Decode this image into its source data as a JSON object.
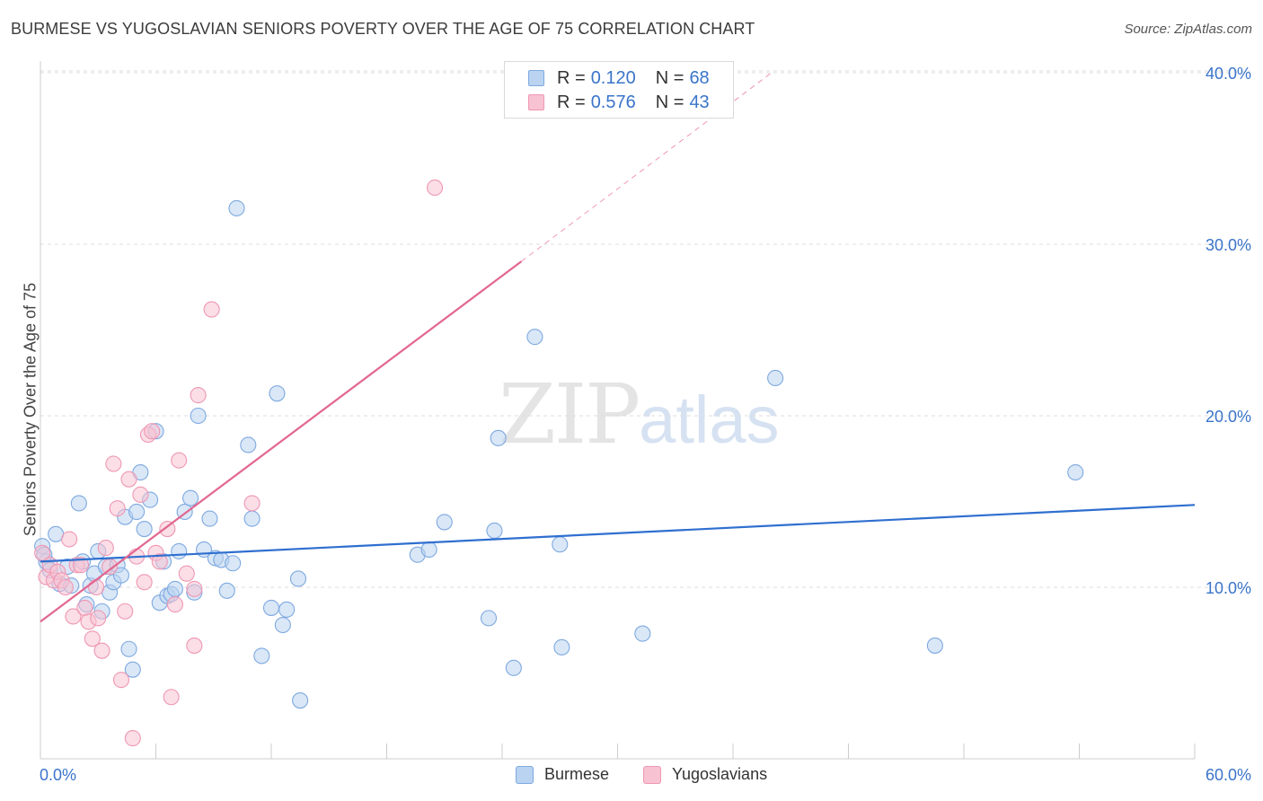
{
  "title": "BURMESE VS YUGOSLAVIAN SENIORS POVERTY OVER THE AGE OF 75 CORRELATION CHART",
  "source": "Source: ZipAtlas.com",
  "watermark": {
    "zip": "ZIP",
    "atlas": "atlas"
  },
  "legend_top": [
    {
      "r_label": "R =",
      "r_value": "0.120",
      "n_label": "N =",
      "n_value": "68"
    },
    {
      "r_label": "R =",
      "r_value": "0.576",
      "n_label": "N =",
      "n_value": "43"
    }
  ],
  "colors": {
    "burmese_fill": "#b9d3f1",
    "burmese_stroke": "#7ea9e0",
    "burmese_line": "#2f6fd0",
    "yugo_fill": "#f7c2d2",
    "yugo_stroke": "#ef97b4",
    "yugo_line": "#e2668f",
    "axis_text": "#3a74c9",
    "grid": "#dddddd"
  },
  "chart_data": {
    "type": "scatter",
    "title": "BURMESE VS YUGOSLAVIAN SENIORS POVERTY OVER THE AGE OF 75 CORRELATION CHART",
    "xlabel": "",
    "ylabel": "Seniors Poverty Over the Age of 75",
    "xlim": [
      0,
      60
    ],
    "ylim": [
      0,
      40
    ],
    "x_tick_labels": [
      "0.0%",
      "60.0%"
    ],
    "y_ticks": [
      10,
      20,
      30,
      40
    ],
    "y_tick_labels": [
      "10.0%",
      "20.0%",
      "30.0%",
      "40.0%"
    ],
    "grid": true,
    "legend_position": "bottom",
    "series": [
      {
        "name": "Burmese",
        "r": 0.12,
        "n": 68,
        "trend": {
          "x": [
            0,
            60
          ],
          "y": [
            11.5,
            14.8
          ]
        },
        "points": [
          [
            0.1,
            12.4
          ],
          [
            0.3,
            11.5
          ],
          [
            0.5,
            11.0
          ],
          [
            0.8,
            13.1
          ],
          [
            1.0,
            10.2
          ],
          [
            1.4,
            11.2
          ],
          [
            1.6,
            10.1
          ],
          [
            2.0,
            14.9
          ],
          [
            2.2,
            11.5
          ],
          [
            2.4,
            9.0
          ],
          [
            2.6,
            10.1
          ],
          [
            2.8,
            10.8
          ],
          [
            3.0,
            12.1
          ],
          [
            3.2,
            8.6
          ],
          [
            3.4,
            11.2
          ],
          [
            3.6,
            9.7
          ],
          [
            3.8,
            10.3
          ],
          [
            4.0,
            11.3
          ],
          [
            4.2,
            10.7
          ],
          [
            4.4,
            14.1
          ],
          [
            4.6,
            6.4
          ],
          [
            4.8,
            5.2
          ],
          [
            5.0,
            14.4
          ],
          [
            5.2,
            16.7
          ],
          [
            5.4,
            13.4
          ],
          [
            5.7,
            15.1
          ],
          [
            6.0,
            19.1
          ],
          [
            6.2,
            9.1
          ],
          [
            6.4,
            11.5
          ],
          [
            6.6,
            9.5
          ],
          [
            6.8,
            9.6
          ],
          [
            7.0,
            9.9
          ],
          [
            7.2,
            12.1
          ],
          [
            7.5,
            14.4
          ],
          [
            7.8,
            15.2
          ],
          [
            8.0,
            9.7
          ],
          [
            8.2,
            20.0
          ],
          [
            8.5,
            12.2
          ],
          [
            8.8,
            14.0
          ],
          [
            9.1,
            11.7
          ],
          [
            9.4,
            11.6
          ],
          [
            9.7,
            9.8
          ],
          [
            10.0,
            11.4
          ],
          [
            10.2,
            32.1
          ],
          [
            10.8,
            18.3
          ],
          [
            11.0,
            14.0
          ],
          [
            11.5,
            6.0
          ],
          [
            12.0,
            8.8
          ],
          [
            12.3,
            21.3
          ],
          [
            12.6,
            7.8
          ],
          [
            12.8,
            8.7
          ],
          [
            13.4,
            10.5
          ],
          [
            13.5,
            3.4
          ],
          [
            19.6,
            11.9
          ],
          [
            20.2,
            12.2
          ],
          [
            21.0,
            13.8
          ],
          [
            23.3,
            8.2
          ],
          [
            23.6,
            13.3
          ],
          [
            23.8,
            18.7
          ],
          [
            24.6,
            5.3
          ],
          [
            25.7,
            24.6
          ],
          [
            27.0,
            12.5
          ],
          [
            27.1,
            6.5
          ],
          [
            31.3,
            7.3
          ],
          [
            38.2,
            22.2
          ],
          [
            46.5,
            6.6
          ],
          [
            53.8,
            16.7
          ],
          [
            0.2,
            11.9
          ]
        ]
      },
      {
        "name": "Yugoslavians",
        "r": 0.576,
        "n": 43,
        "trend": {
          "x": [
            0,
            25
          ],
          "y": [
            8.0,
            29.0
          ]
        },
        "trend_extension": {
          "x": [
            25,
            38
          ],
          "y": [
            29.0,
            40.0
          ]
        },
        "points": [
          [
            0.1,
            12.0
          ],
          [
            0.3,
            10.6
          ],
          [
            0.5,
            11.3
          ],
          [
            0.7,
            10.4
          ],
          [
            0.9,
            10.9
          ],
          [
            1.1,
            10.4
          ],
          [
            1.3,
            10.0
          ],
          [
            1.5,
            12.8
          ],
          [
            1.7,
            8.3
          ],
          [
            1.9,
            11.3
          ],
          [
            2.1,
            11.3
          ],
          [
            2.3,
            8.8
          ],
          [
            2.5,
            8.0
          ],
          [
            2.7,
            7.0
          ],
          [
            2.9,
            10.0
          ],
          [
            3.0,
            8.2
          ],
          [
            3.2,
            6.3
          ],
          [
            3.4,
            12.3
          ],
          [
            3.6,
            11.2
          ],
          [
            3.8,
            17.2
          ],
          [
            4.0,
            14.6
          ],
          [
            4.2,
            4.6
          ],
          [
            4.4,
            8.6
          ],
          [
            4.6,
            16.3
          ],
          [
            4.8,
            1.2
          ],
          [
            5.0,
            11.8
          ],
          [
            5.2,
            15.4
          ],
          [
            5.4,
            10.3
          ],
          [
            5.6,
            18.9
          ],
          [
            5.8,
            19.1
          ],
          [
            6.0,
            12.0
          ],
          [
            6.2,
            11.5
          ],
          [
            6.6,
            13.4
          ],
          [
            6.8,
            3.6
          ],
          [
            7.0,
            9.0
          ],
          [
            7.2,
            17.4
          ],
          [
            7.6,
            10.8
          ],
          [
            8.0,
            6.6
          ],
          [
            8.2,
            21.2
          ],
          [
            8.9,
            26.2
          ],
          [
            11.0,
            14.9
          ],
          [
            20.5,
            33.3
          ],
          [
            8.0,
            9.9
          ]
        ]
      }
    ]
  }
}
